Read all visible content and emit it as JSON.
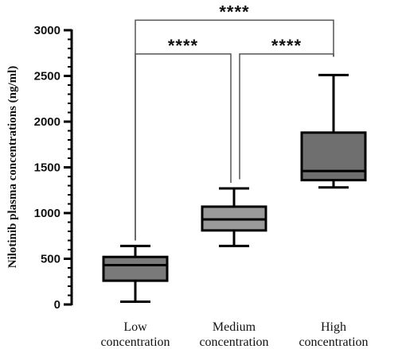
{
  "chart_data": {
    "type": "box",
    "ylabel": "Nilotinib plasma concentrations (ng/ml)",
    "xlabel": "",
    "ylim": [
      0,
      3000
    ],
    "yticks": [
      0,
      500,
      1000,
      1500,
      2000,
      2500,
      3000
    ],
    "y_minor_step": 100,
    "grid": false,
    "categories": [
      "Low concentration",
      "Medium concentration",
      "High concentration"
    ],
    "category_lines": [
      [
        "Low",
        "concentration"
      ],
      [
        "Medium",
        "concentration"
      ],
      [
        "High",
        "concentration"
      ]
    ],
    "boxes": [
      {
        "min": 30,
        "q1": 260,
        "median": 430,
        "q3": 520,
        "max": 640,
        "color": "#7a7a7a"
      },
      {
        "min": 640,
        "q1": 810,
        "median": 930,
        "q3": 1070,
        "max": 1270,
        "color": "#9a9a9a"
      },
      {
        "min": 1280,
        "q1": 1360,
        "median": 1460,
        "q3": 1880,
        "max": 2510,
        "color": "#6f6f6f"
      }
    ],
    "significance": [
      {
        "from": 0,
        "to": 1,
        "label": "****",
        "y": 2740,
        "left_end": 700,
        "right_end": 1330
      },
      {
        "from": 1,
        "to": 2,
        "label": "****",
        "y": 2740,
        "left_end": 1370,
        "right_end": 2710
      },
      {
        "from": 0,
        "to": 2,
        "label": "****",
        "y": 3110,
        "left_end": 700,
        "right_end": 2710
      }
    ]
  }
}
